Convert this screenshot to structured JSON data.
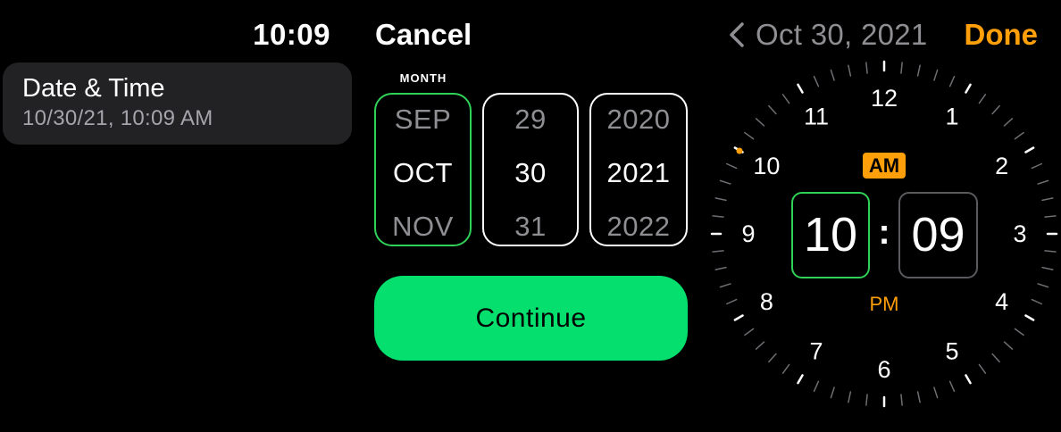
{
  "settings": {
    "status_time": "10:09",
    "row": {
      "title": "Date & Time",
      "subtitle": "10/30/21, 10:09 AM"
    }
  },
  "date_picker": {
    "cancel_label": "Cancel",
    "month_caption": "MONTH",
    "month": {
      "prev": "SEP",
      "current": "OCT",
      "next": "NOV"
    },
    "day": {
      "prev": "29",
      "current": "30",
      "next": "31"
    },
    "year": {
      "prev": "2020",
      "current": "2021",
      "next": "2022"
    },
    "continue_label": "Continue",
    "focused_column": "month",
    "accent_color": "#30d158",
    "button_color": "#04df6e"
  },
  "time_picker": {
    "back_icon": "chevron-left-icon",
    "back_label": "Oct 30, 2021",
    "done_label": "Done",
    "hours": [
      "12",
      "1",
      "2",
      "3",
      "4",
      "5",
      "6",
      "7",
      "8",
      "9",
      "10",
      "11"
    ],
    "am_label": "AM",
    "pm_label": "PM",
    "selected_period": "AM",
    "hour_value": "10",
    "minute_value": "09",
    "separator": ":",
    "focused_field": "hour",
    "accent_color": "#ff9f0a"
  }
}
